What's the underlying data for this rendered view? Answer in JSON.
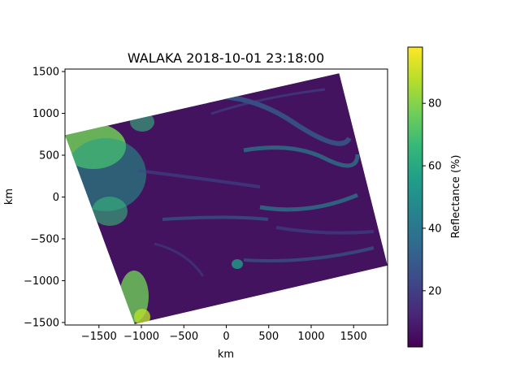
{
  "chart_data": {
    "type": "heatmap",
    "title": "WALAKA 2018-10-01 23:18:00",
    "xlabel": "km",
    "ylabel": "km",
    "xlim": [
      -1900,
      1900
    ],
    "ylim": [
      -1530,
      1530
    ],
    "xticks": [
      -1500,
      -1000,
      -500,
      0,
      500,
      1000,
      1500
    ],
    "xtick_labels": [
      "−1500",
      "−1000",
      "−500",
      "0",
      "500",
      "1000",
      "1500"
    ],
    "yticks": [
      1500,
      1000,
      500,
      0,
      -500,
      -1000,
      -1500
    ],
    "ytick_labels": [
      "1500",
      "1000",
      "500",
      "0",
      "−500",
      "−1000",
      "−1500"
    ],
    "swath_corners_km": [
      [
        -1900,
        740
      ],
      [
        1330,
        1480
      ],
      [
        1900,
        -820
      ],
      [
        -1080,
        -1520
      ]
    ],
    "colorbar": {
      "label": "Reflectance (%)",
      "colormap": "viridis",
      "range": [
        2,
        98
      ],
      "ticks": [
        20,
        40,
        60,
        80
      ],
      "tick_labels": [
        "20",
        "40",
        "60",
        "80"
      ]
    },
    "colors": [
      "#440154",
      "#482878",
      "#3e4989",
      "#31688e",
      "#26828e",
      "#1f9e89",
      "#35b779",
      "#6ece58",
      "#b5de2b",
      "#fde725"
    ]
  }
}
